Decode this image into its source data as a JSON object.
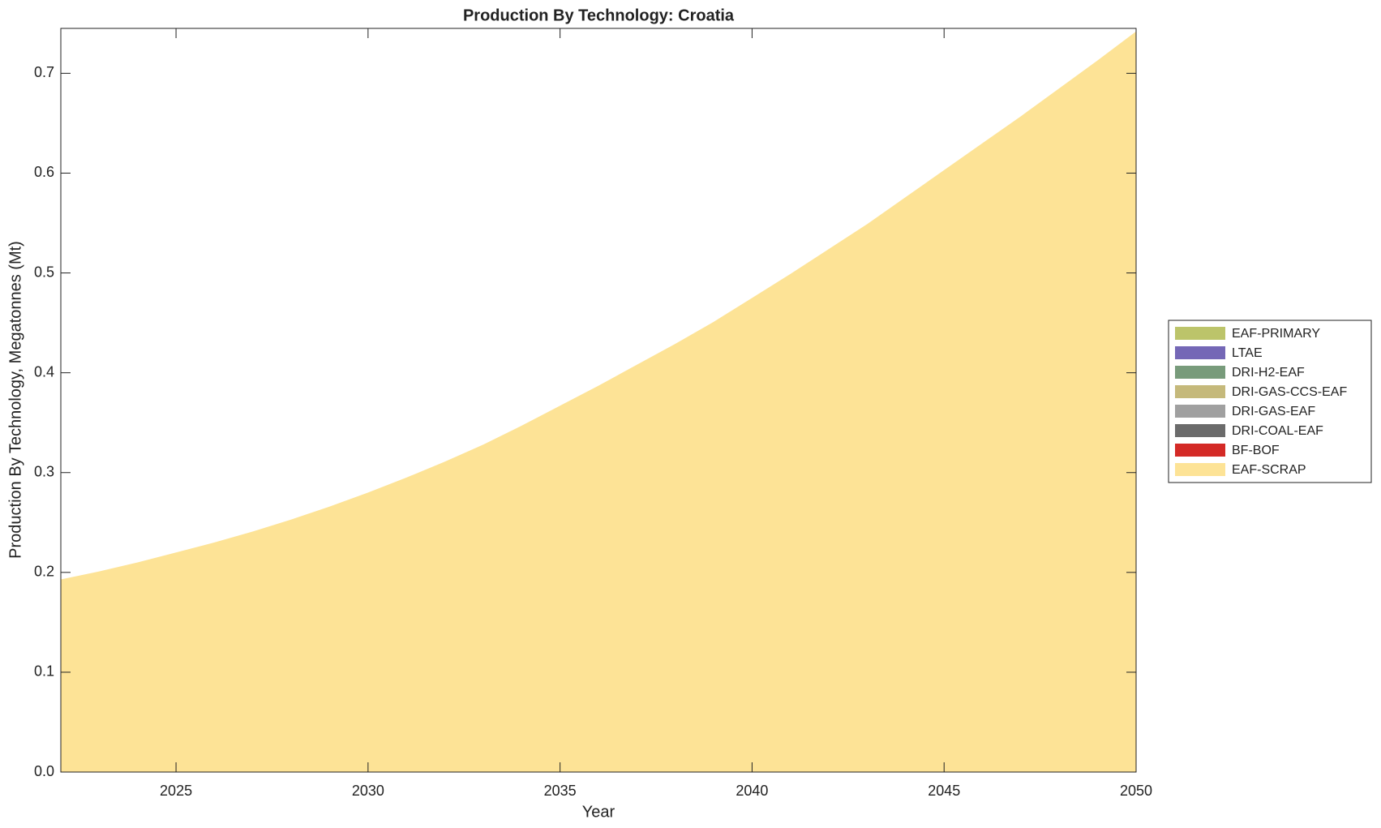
{
  "chart_data": {
    "type": "area",
    "title": "Production By Technology: Croatia",
    "x_label": "Year",
    "y_label": "Production By Technology, Megatonnes (Mt)",
    "x": [
      2022,
      2023,
      2024,
      2025,
      2026,
      2027,
      2028,
      2029,
      2030,
      2031,
      2032,
      2033,
      2034,
      2035,
      2036,
      2037,
      2038,
      2039,
      2040,
      2041,
      2042,
      2043,
      2044,
      2045,
      2046,
      2047,
      2048,
      2049,
      2050
    ],
    "xlim": [
      2022,
      2050
    ],
    "xticks": [
      2025,
      2030,
      2035,
      2040,
      2045,
      2050
    ],
    "ylim": [
      0,
      0.745
    ],
    "yticks": [
      {
        "value": 0,
        "label": "0.0"
      },
      0.1,
      0.2,
      0.3,
      0.4,
      0.5,
      0.6,
      0.7
    ],
    "legend": "right",
    "stacked": true,
    "series": [
      {
        "name": "EAF-PRIMARY",
        "color": "#bcc46a",
        "values": [
          0,
          0,
          0,
          0,
          0,
          0,
          0,
          0,
          0,
          0,
          0,
          0,
          0,
          0,
          0,
          0,
          0,
          0,
          0,
          0,
          0,
          0,
          0,
          0,
          0,
          0,
          0,
          0,
          0
        ]
      },
      {
        "name": "LTAE",
        "color": "#7467b6",
        "values": [
          0,
          0,
          0,
          0,
          0,
          0,
          0,
          0,
          0,
          0,
          0,
          0,
          0,
          0,
          0,
          0,
          0,
          0,
          0,
          0,
          0,
          0,
          0,
          0,
          0,
          0,
          0,
          0,
          0
        ]
      },
      {
        "name": "DRI-H2-EAF",
        "color": "#789b7b",
        "values": [
          0,
          0,
          0,
          0,
          0,
          0,
          0,
          0,
          0,
          0,
          0,
          0,
          0,
          0,
          0,
          0,
          0,
          0,
          0,
          0,
          0,
          0,
          0,
          0,
          0,
          0,
          0,
          0,
          0
        ]
      },
      {
        "name": "DRI-GAS-CCS-EAF",
        "color": "#c5b97b",
        "values": [
          0,
          0,
          0,
          0,
          0,
          0,
          0,
          0,
          0,
          0,
          0,
          0,
          0,
          0,
          0,
          0,
          0,
          0,
          0,
          0,
          0,
          0,
          0,
          0,
          0,
          0,
          0,
          0,
          0
        ]
      },
      {
        "name": "DRI-GAS-EAF",
        "color": "#a0a0a0",
        "values": [
          0,
          0,
          0,
          0,
          0,
          0,
          0,
          0,
          0,
          0,
          0,
          0,
          0,
          0,
          0,
          0,
          0,
          0,
          0,
          0,
          0,
          0,
          0,
          0,
          0,
          0,
          0,
          0,
          0
        ]
      },
      {
        "name": "DRI-COAL-EAF",
        "color": "#6b6b6b",
        "values": [
          0,
          0,
          0,
          0,
          0,
          0,
          0,
          0,
          0,
          0,
          0,
          0,
          0,
          0,
          0,
          0,
          0,
          0,
          0,
          0,
          0,
          0,
          0,
          0,
          0,
          0,
          0,
          0,
          0
        ]
      },
      {
        "name": "BF-BOF",
        "color": "#d42a26",
        "values": [
          0,
          0,
          0,
          0,
          0,
          0,
          0,
          0,
          0,
          0,
          0,
          0,
          0,
          0,
          0,
          0,
          0,
          0,
          0,
          0,
          0,
          0,
          0,
          0,
          0,
          0,
          0,
          0,
          0
        ]
      },
      {
        "name": "EAF-SCRAP",
        "color": "#fde396",
        "values": [
          0.193,
          0.201,
          0.21,
          0.22,
          0.23,
          0.241,
          0.253,
          0.266,
          0.28,
          0.295,
          0.311,
          0.328,
          0.347,
          0.367,
          0.387,
          0.408,
          0.429,
          0.451,
          0.475,
          0.499,
          0.524,
          0.549,
          0.576,
          0.603,
          0.63,
          0.657,
          0.685,
          0.713,
          0.742
        ]
      }
    ]
  }
}
